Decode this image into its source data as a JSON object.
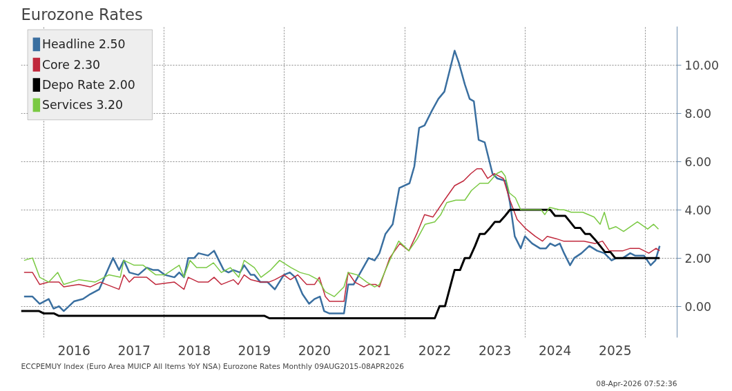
{
  "chart_data": {
    "type": "line",
    "title": "Eurozone Rates",
    "annotations": [
      "ECCPEMUY Index (Euro Area MUICP All Items YoY NSA) Eurozone Rates Monthly 09AUG2015-08APR2026",
      "08-Apr-2026 07:52:36"
    ],
    "xlim": [
      2015.62,
      2026.53
    ],
    "ylim": [
      -1.3,
      11.6
    ],
    "xticks": [
      {
        "value": 2016,
        "label": null
      },
      {
        "value": 2016.5,
        "label": "2016"
      },
      {
        "value": 2017.5,
        "label": "2017"
      },
      {
        "value": 2018,
        "label": null
      },
      {
        "value": 2018.5,
        "label": "2018"
      },
      {
        "value": 2019.5,
        "label": "2019"
      },
      {
        "value": 2020,
        "label": null
      },
      {
        "value": 2020.5,
        "label": "2020"
      },
      {
        "value": 2021.5,
        "label": "2021"
      },
      {
        "value": 2022,
        "label": null
      },
      {
        "value": 2022.5,
        "label": "2022"
      },
      {
        "value": 2023.5,
        "label": "2023"
      },
      {
        "value": 2024,
        "label": null
      },
      {
        "value": 2024.5,
        "label": "2024"
      },
      {
        "value": 2025.5,
        "label": "2025"
      },
      {
        "value": 2026,
        "label": null
      }
    ],
    "yticks": [
      {
        "value": 0,
        "label": "0.00"
      },
      {
        "value": 2,
        "label": "2.00"
      },
      {
        "value": 4,
        "label": "4.00"
      },
      {
        "value": 6,
        "label": "6.00"
      },
      {
        "value": 8,
        "label": "8.00"
      },
      {
        "value": 10,
        "label": "10.00"
      }
    ],
    "grid": true,
    "legend": "top left",
    "series": [
      {
        "name": "Headline 2.50",
        "color": "#3a6fa0",
        "x": [
          2015.67,
          2015.81,
          2015.93,
          2016.08,
          2016.16,
          2016.25,
          2016.33,
          2016.5,
          2016.65,
          2016.77,
          2016.92,
          2017.15,
          2017.25,
          2017.33,
          2017.42,
          2017.57,
          2017.71,
          2017.82,
          2017.9,
          2018.01,
          2018.17,
          2018.25,
          2018.33,
          2018.4,
          2018.5,
          2018.57,
          2018.73,
          2018.83,
          2018.99,
          2019.07,
          2019.15,
          2019.26,
          2019.33,
          2019.44,
          2019.5,
          2019.6,
          2019.72,
          2019.84,
          2019.99,
          2020.09,
          2020.18,
          2020.3,
          2020.41,
          2020.5,
          2020.59,
          2020.66,
          2020.75,
          2020.99,
          2021.06,
          2021.15,
          2021.31,
          2021.4,
          2021.5,
          2021.58,
          2021.68,
          2021.8,
          2021.91,
          2022.08,
          2022.16,
          2022.24,
          2022.33,
          2022.45,
          2022.56,
          2022.66,
          2022.83,
          2022.9,
          2023.0,
          2023.08,
          2023.15,
          2023.23,
          2023.33,
          2023.46,
          2023.54,
          2023.68,
          2023.75,
          2023.83,
          2023.93,
          2024.0,
          2024.12,
          2024.25,
          2024.35,
          2024.42,
          2024.5,
          2024.58,
          2024.65,
          2024.75,
          2024.82,
          2024.94,
          2025.07,
          2025.2,
          2025.32,
          2025.44,
          2025.52,
          2025.63,
          2025.75,
          2025.83,
          2025.98,
          2026.09,
          2026.17,
          2026.24
        ],
        "values": [
          0.4,
          0.4,
          0.1,
          0.3,
          -0.1,
          0.0,
          -0.2,
          0.2,
          0.3,
          0.5,
          0.7,
          2.0,
          1.5,
          1.9,
          1.4,
          1.3,
          1.6,
          1.5,
          1.5,
          1.3,
          1.2,
          1.4,
          1.2,
          2.0,
          2.0,
          2.2,
          2.1,
          2.3,
          1.5,
          1.4,
          1.5,
          1.4,
          1.7,
          1.3,
          1.3,
          1.0,
          1.0,
          0.7,
          1.3,
          1.4,
          1.2,
          0.5,
          0.1,
          0.3,
          0.4,
          -0.2,
          -0.3,
          -0.3,
          0.9,
          0.9,
          1.6,
          2.0,
          1.9,
          2.2,
          3.0,
          3.4,
          4.9,
          5.1,
          5.8,
          7.4,
          7.5,
          8.1,
          8.6,
          8.9,
          10.6,
          10.1,
          9.2,
          8.6,
          8.5,
          6.9,
          6.8,
          5.5,
          5.3,
          5.2,
          4.3,
          2.9,
          2.4,
          2.9,
          2.6,
          2.4,
          2.4,
          2.6,
          2.5,
          2.6,
          2.2,
          1.7,
          2.0,
          2.2,
          2.5,
          2.3,
          2.2,
          1.9,
          2.0,
          2.0,
          2.2,
          2.1,
          2.1,
          1.7,
          1.9,
          2.5
        ]
      },
      {
        "name": "Core 2.30",
        "color": "#c0283c",
        "x": [
          2015.67,
          2015.81,
          2015.93,
          2016.08,
          2016.25,
          2016.33,
          2016.58,
          2016.77,
          2016.94,
          2017.25,
          2017.33,
          2017.42,
          2017.5,
          2017.71,
          2017.86,
          2018.17,
          2018.33,
          2018.4,
          2018.57,
          2018.73,
          2018.83,
          2018.95,
          2019.15,
          2019.23,
          2019.33,
          2019.44,
          2019.6,
          2019.74,
          2019.84,
          2019.99,
          2020.1,
          2020.22,
          2020.37,
          2020.5,
          2020.58,
          2020.68,
          2020.75,
          2020.99,
          2021.06,
          2021.17,
          2021.32,
          2021.4,
          2021.52,
          2021.58,
          2021.75,
          2021.92,
          2022.07,
          2022.2,
          2022.33,
          2022.47,
          2022.66,
          2022.83,
          2022.98,
          2023.1,
          2023.2,
          2023.28,
          2023.38,
          2023.49,
          2023.64,
          2023.75,
          2023.87,
          2024.02,
          2024.17,
          2024.29,
          2024.37,
          2024.52,
          2024.64,
          2024.98,
          2025.17,
          2025.29,
          2025.4,
          2025.63,
          2025.75,
          2025.9,
          2026.06,
          2026.18,
          2026.24
        ],
        "values": [
          1.4,
          1.4,
          0.9,
          1.0,
          1.0,
          0.8,
          0.9,
          0.8,
          1.0,
          0.7,
          1.3,
          1.0,
          1.2,
          1.2,
          0.9,
          1.0,
          0.7,
          1.2,
          1.0,
          1.0,
          1.2,
          0.9,
          1.1,
          0.9,
          1.3,
          1.1,
          1.0,
          1.0,
          1.1,
          1.3,
          1.1,
          1.3,
          0.9,
          0.9,
          1.2,
          0.4,
          0.2,
          0.2,
          1.4,
          1.0,
          0.8,
          0.9,
          0.9,
          0.8,
          2.0,
          2.6,
          2.3,
          3.0,
          3.8,
          3.7,
          4.4,
          5.0,
          5.2,
          5.5,
          5.7,
          5.7,
          5.3,
          5.5,
          5.3,
          4.4,
          3.6,
          3.2,
          2.9,
          2.7,
          2.9,
          2.8,
          2.7,
          2.7,
          2.6,
          2.7,
          2.3,
          2.3,
          2.4,
          2.4,
          2.2,
          2.4,
          2.3
        ]
      },
      {
        "name": "Depo Rate 2.00",
        "color": "#000000",
        "x": [
          2015.62,
          2015.92,
          2016.0,
          2016.17,
          2016.25,
          2019.67,
          2019.75,
          2022.5,
          2022.58,
          2022.67,
          2022.75,
          2022.83,
          2022.92,
          2023.0,
          2023.08,
          2023.17,
          2023.25,
          2023.33,
          2023.42,
          2023.5,
          2023.58,
          2023.67,
          2023.75,
          2024.42,
          2024.5,
          2024.67,
          2024.75,
          2024.83,
          2024.92,
          2025.0,
          2025.08,
          2025.17,
          2025.25,
          2025.33,
          2025.42,
          2025.5,
          2026.24
        ],
        "values": [
          -0.2,
          -0.2,
          -0.3,
          -0.3,
          -0.4,
          -0.4,
          -0.5,
          -0.5,
          0.0,
          0.0,
          0.75,
          1.5,
          1.5,
          2.0,
          2.0,
          2.5,
          3.0,
          3.0,
          3.25,
          3.5,
          3.5,
          3.75,
          4.0,
          4.0,
          3.75,
          3.75,
          3.5,
          3.25,
          3.25,
          3.0,
          3.0,
          2.75,
          2.5,
          2.25,
          2.25,
          2.0,
          2.0
        ]
      },
      {
        "name": "Services 3.20",
        "color": "#7ac943",
        "x": [
          2015.67,
          2015.81,
          2015.93,
          2016.08,
          2016.23,
          2016.33,
          2016.58,
          2016.85,
          2017.08,
          2017.27,
          2017.33,
          2017.5,
          2017.65,
          2017.86,
          2018.01,
          2018.25,
          2018.33,
          2018.43,
          2018.54,
          2018.7,
          2018.82,
          2018.95,
          2019.1,
          2019.24,
          2019.33,
          2019.5,
          2019.61,
          2019.77,
          2019.92,
          2020.11,
          2020.26,
          2020.41,
          2020.56,
          2020.68,
          2020.83,
          2020.99,
          2021.06,
          2021.21,
          2021.37,
          2021.5,
          2021.58,
          2021.75,
          2021.9,
          2022.07,
          2022.21,
          2022.34,
          2022.5,
          2022.6,
          2022.7,
          2022.85,
          2023.0,
          2023.11,
          2023.25,
          2023.39,
          2023.53,
          2023.61,
          2023.67,
          2023.74,
          2023.84,
          2023.93,
          2024.27,
          2024.33,
          2024.41,
          2024.58,
          2024.65,
          2024.77,
          2024.96,
          2025.15,
          2025.25,
          2025.32,
          2025.4,
          2025.51,
          2025.64,
          2025.87,
          2026.04,
          2026.14,
          2026.22
        ],
        "values": [
          1.9,
          2.0,
          1.2,
          1.0,
          1.4,
          0.9,
          1.1,
          1.0,
          1.3,
          1.2,
          1.9,
          1.7,
          1.7,
          1.3,
          1.3,
          1.7,
          1.2,
          1.9,
          1.6,
          1.6,
          1.8,
          1.4,
          1.6,
          1.2,
          1.9,
          1.6,
          1.2,
          1.5,
          1.9,
          1.6,
          1.4,
          1.3,
          1.1,
          0.6,
          0.4,
          0.8,
          1.4,
          1.3,
          1.0,
          0.8,
          0.9,
          1.9,
          2.7,
          2.3,
          2.8,
          3.4,
          3.5,
          3.8,
          4.3,
          4.4,
          4.4,
          4.8,
          5.1,
          5.1,
          5.5,
          5.6,
          5.4,
          4.7,
          4.5,
          4.0,
          4.0,
          3.8,
          4.1,
          4.0,
          4.0,
          3.9,
          3.9,
          3.7,
          3.4,
          3.9,
          3.2,
          3.3,
          3.1,
          3.5,
          3.2,
          3.4,
          3.2
        ]
      }
    ]
  }
}
